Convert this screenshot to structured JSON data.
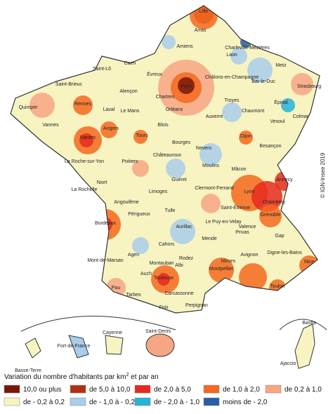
{
  "map": {
    "cities": [
      "Lille",
      "Arras",
      "Amiens",
      "Laon",
      "Charleville-Mézières",
      "Metz",
      "Bar-le-Duc",
      "Châlons-en-Champagne",
      "Saint-Lô",
      "Caen",
      "Évreux",
      "Paris",
      "Chartres",
      "Alençon",
      "Saint-Brieuc",
      "Quimper",
      "Rennes",
      "Laval",
      "Le Mans",
      "Troyes",
      "Chaumont",
      "Épinal",
      "Strasbourg",
      "Colmar",
      "Vannes",
      "Nantes",
      "Angers",
      "Tours",
      "Blois",
      "Orléans",
      "Auxerre",
      "Vesoul",
      "Dijon",
      "Besançon",
      "Nevers",
      "Bourges",
      "Châteauroux",
      "La Roche-sur-Yon",
      "Poitiers",
      "Moulins",
      "Mâcon",
      "Guéret",
      "Lyon",
      "Clermont-Ferrand",
      "Annecy",
      "Niort",
      "La Rochelle",
      "Limoges",
      "Angoulême",
      "Chambéry",
      "Saint-Étienne",
      "Le Puy-en-Velay",
      "Grenoble",
      "Périgueux",
      "Tulle",
      "Bordeaux",
      "Aurillac",
      "Valence",
      "Privas",
      "Gap",
      "Cahors",
      "Mende",
      "Rodez",
      "Agen",
      "Montauban",
      "Albi",
      "Digne-les-Bains",
      "Mont-de-Marsan",
      "Auch",
      "Toulouse",
      "Nîmes",
      "Montpellier",
      "Avignon",
      "Nice",
      "Toulon",
      "Pau",
      "Tarbes",
      "Foix",
      "Carcassonne",
      "Perpignan",
      "Bastia",
      "Ajaccio",
      "Basse-Terre",
      "Fort-de-France",
      "Cayenne",
      "Saint-Denis"
    ],
    "copyright": "© IGN-Insee 2019",
    "legend": {
      "title": "Variation du nombre d'habitants par km",
      "title_sup": "2",
      "title_end": " et par an",
      "items": [
        {
          "label": "10,0 ou plus",
          "color": "#7a1608"
        },
        {
          "label": "de 5,0 à 10,0",
          "color": "#b2300f"
        },
        {
          "label": "de 2,0 à 5,0",
          "color": "#e62a1e"
        },
        {
          "label": "de 1,0 à 2,0",
          "color": "#f4681f"
        },
        {
          "label": "de 0,2 à 1,0",
          "color": "#f7a684"
        },
        {
          "label": "de - 0,2 à 0,2",
          "color": "#f7f4c2"
        },
        {
          "label": "de - 1,0 à - 0,2",
          "color": "#a9cdeb"
        },
        {
          "label": "de - 2,0 à - 1,0",
          "color": "#27b2d8"
        },
        {
          "label": "moins de - 2,0",
          "color": "#2b5ca7"
        }
      ]
    }
  }
}
